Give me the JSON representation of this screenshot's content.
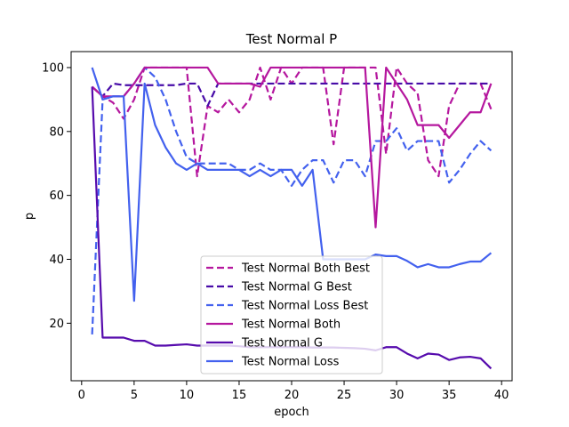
{
  "chart_data": {
    "type": "line",
    "title": "Test Normal P",
    "xlabel": "epoch",
    "ylabel": "p",
    "xlim": [
      -1,
      41
    ],
    "ylim": [
      2,
      105
    ],
    "xticks": [
      0,
      5,
      10,
      15,
      20,
      25,
      30,
      35,
      40
    ],
    "yticks": [
      20,
      40,
      60,
      80,
      100
    ],
    "grid": false,
    "legend_position": "lower center",
    "series": [
      {
        "name": "Test Normal Both Best",
        "color": "#b5179e",
        "dash": true,
        "x": [
          1,
          2,
          3,
          4,
          5,
          6,
          7,
          8,
          9,
          10,
          11,
          12,
          13,
          14,
          15,
          16,
          17,
          18,
          19,
          20,
          21,
          22,
          23,
          24,
          25,
          26,
          27,
          28,
          29,
          30,
          31,
          32,
          33,
          34,
          35,
          36,
          37,
          38,
          39
        ],
        "y": [
          94,
          91,
          89,
          84,
          90,
          100,
          100,
          100,
          100,
          100,
          66,
          88,
          86,
          90,
          86,
          90,
          100,
          90,
          100,
          95,
          100,
          100,
          100,
          76,
          100,
          100,
          100,
          100,
          73,
          100,
          95,
          92,
          71,
          66,
          88,
          95,
          95,
          95,
          87
        ]
      },
      {
        "name": "Test Normal G Best",
        "color": "#480ca8",
        "dash": true,
        "x": [
          1,
          2,
          3,
          4,
          5,
          6,
          7,
          8,
          9,
          10,
          11,
          12,
          13,
          14,
          15,
          16,
          17,
          18,
          19,
          20,
          21,
          22,
          23,
          24,
          25,
          26,
          27,
          28,
          29,
          30,
          31,
          32,
          33,
          34,
          35,
          36,
          37,
          38,
          39
        ],
        "y": [
          94,
          91,
          95,
          94.5,
          94.5,
          94.5,
          94.5,
          94.5,
          94.5,
          95,
          95,
          88,
          95,
          95,
          95,
          95,
          95,
          95,
          95,
          95,
          95,
          95,
          95,
          95,
          95,
          95,
          95,
          95,
          95,
          95,
          95,
          95,
          95,
          95,
          95,
          95,
          95,
          95,
          95
        ]
      },
      {
        "name": "Test Normal Loss Best",
        "color": "#4361ee",
        "dash": true,
        "x": [
          1,
          2,
          3,
          4,
          5,
          6,
          7,
          8,
          9,
          10,
          11,
          12,
          13,
          14,
          15,
          16,
          17,
          18,
          19,
          20,
          21,
          22,
          23,
          24,
          25,
          26,
          27,
          28,
          29,
          30,
          31,
          32,
          33,
          34,
          35,
          36,
          37,
          38,
          39
        ],
        "y": [
          16.5,
          90,
          91,
          91,
          95,
          100,
          97,
          90,
          80,
          72,
          70,
          70,
          70,
          70,
          68,
          68,
          70,
          68,
          68,
          63,
          68,
          71,
          71,
          64,
          71,
          71,
          66,
          77,
          77,
          81,
          74,
          77,
          77,
          77,
          64,
          68,
          73,
          77,
          74
        ]
      },
      {
        "name": "Test Normal Both",
        "color": "#b5179e",
        "dash": false,
        "x": [
          1,
          2,
          3,
          4,
          5,
          6,
          7,
          8,
          9,
          10,
          11,
          12,
          13,
          14,
          15,
          16,
          17,
          18,
          19,
          20,
          21,
          22,
          23,
          24,
          25,
          26,
          27,
          28,
          29,
          30,
          31,
          32,
          33,
          34,
          35,
          36,
          37,
          38,
          39
        ],
        "y": [
          94,
          91,
          91,
          91,
          95,
          100,
          100,
          100,
          100,
          100,
          100,
          100,
          95,
          95,
          95,
          95,
          94,
          100,
          100,
          100,
          100,
          100,
          100,
          100,
          100,
          100,
          100,
          50,
          100,
          95,
          90,
          82,
          82,
          82,
          78,
          82,
          86,
          86,
          95
        ]
      },
      {
        "name": "Test Normal G",
        "color": "#560bad",
        "dash": false,
        "x": [
          1,
          2,
          3,
          4,
          5,
          6,
          7,
          8,
          9,
          10,
          11,
          12,
          13,
          14,
          15,
          16,
          17,
          18,
          19,
          20,
          21,
          22,
          23,
          24,
          25,
          26,
          27,
          28,
          29,
          30,
          31,
          32,
          33,
          34,
          35,
          36,
          37,
          38,
          39
        ],
        "y": [
          94,
          15.5,
          15.5,
          15.5,
          14.5,
          14.5,
          13,
          13,
          13.2,
          13.4,
          13,
          13,
          13,
          13,
          12.8,
          12.5,
          12.5,
          12.5,
          12.5,
          12.5,
          12.5,
          12.4,
          12.4,
          12.4,
          12.3,
          12.2,
          12,
          11.5,
          12.5,
          12.5,
          10.5,
          9,
          10.5,
          10.2,
          8.5,
          9.3,
          9.5,
          9,
          5.8
        ]
      },
      {
        "name": "Test Normal Loss",
        "color": "#4361ee",
        "dash": false,
        "x": [
          1,
          2,
          3,
          4,
          5,
          6,
          7,
          8,
          9,
          10,
          11,
          12,
          13,
          14,
          15,
          16,
          17,
          18,
          19,
          20,
          21,
          22,
          23,
          24,
          25,
          26,
          27,
          28,
          29,
          30,
          31,
          32,
          33,
          34,
          35,
          36,
          37,
          38,
          39
        ],
        "y": [
          100,
          90,
          91,
          91,
          27,
          95,
          82,
          75,
          70,
          68,
          70,
          68,
          68,
          68,
          68,
          66,
          68,
          66,
          68,
          68,
          63,
          68,
          40,
          40,
          40,
          40,
          40,
          41.5,
          41,
          41,
          39.5,
          37.5,
          38.5,
          37.5,
          37.5,
          38.5,
          39.3,
          39.3,
          42
        ]
      }
    ]
  }
}
